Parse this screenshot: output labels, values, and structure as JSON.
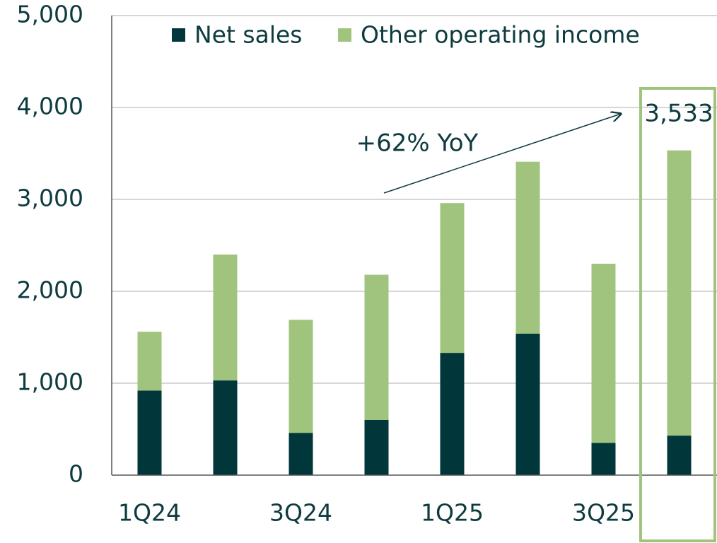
{
  "chart_data": {
    "type": "stacked_bar",
    "categories": [
      "1Q24",
      null,
      "3Q24",
      null,
      "1Q25",
      null,
      "3Q25",
      null
    ],
    "series": [
      {
        "name": "Net sales",
        "color": "#01363a",
        "values": [
          920,
          1030,
          460,
          600,
          1330,
          1540,
          350,
          430
        ]
      },
      {
        "name": "Other operating income",
        "color": "#a0c47e",
        "values": [
          640,
          1370,
          1230,
          1580,
          1630,
          1870,
          1950,
          3103
        ]
      }
    ],
    "ylim": [
      0,
      5000
    ],
    "yticks": [
      0,
      {
        "value": 1000,
        "label": "1,000"
      },
      {
        "value": 2000,
        "label": "2,000"
      },
      {
        "value": 3000,
        "label": "3,000"
      },
      {
        "value": 4000,
        "label": "4,000"
      },
      {
        "value": 5000,
        "label": "5,000"
      }
    ],
    "grid": true,
    "annotations": [
      {
        "text": "+62% YoY"
      },
      {
        "text": "3,533"
      }
    ]
  }
}
